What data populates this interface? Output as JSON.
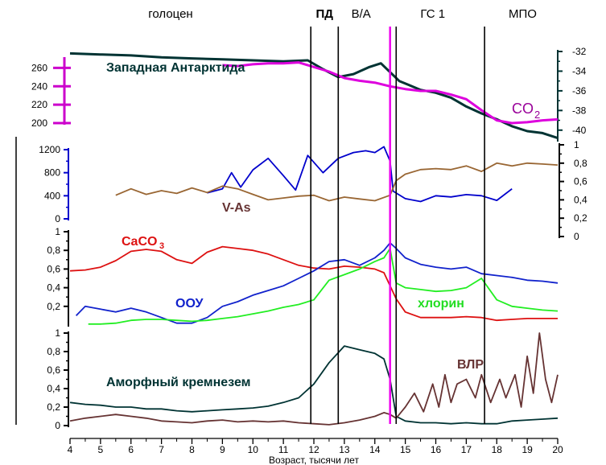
{
  "chart_data": {
    "type": "line",
    "xlabel": "Возраст, тысячи лет",
    "xlim": [
      4,
      20
    ],
    "x_ticks": [
      "4",
      "5",
      "6",
      "7",
      "8",
      "9",
      "10",
      "11",
      "12",
      "13",
      "14",
      "15",
      "16",
      "17",
      "18",
      "19",
      "20"
    ],
    "periods": [
      {
        "label": "голоцен",
        "x": 7.3
      },
      {
        "label": "ПД",
        "x": 12.35
      },
      {
        "label": "B/A",
        "x": 13.55
      },
      {
        "label": "ГС 1",
        "x": 15.9
      },
      {
        "label": "МПО",
        "x": 18.85
      }
    ],
    "event_lines": {
      "black": [
        11.9,
        12.8,
        14.7,
        17.6
      ],
      "magenta": 14.5
    },
    "annotations": {
      "antarctica": "Западная Антарктида",
      "co2": "CO",
      "co2_sub": "2",
      "vas": "V-As",
      "caco3": "CaCO",
      "caco3_sub": "3",
      "oou": "ООУ",
      "chlorin": "хлорин",
      "amorph": "Аморфный кремнезем",
      "vlr": "ВЛР"
    },
    "axes": {
      "co2": {
        "ticks": [
          "260",
          "240",
          "220",
          "200"
        ],
        "ylim": [
          200,
          270
        ],
        "color": "#cc00cc"
      },
      "d18o": {
        "ticks": [
          "-32",
          "-34",
          "-36",
          "-38",
          "-40"
        ],
        "ylim": [
          -41,
          -32
        ],
        "color": "#003333"
      },
      "vas": {
        "ticks": [
          "1200",
          "800",
          "400",
          "0"
        ],
        "ylim": [
          0,
          1200
        ],
        "color": "#0000cc"
      },
      "right01": {
        "ticks": [
          "1",
          "0,8",
          "0,6",
          "0,4",
          "0,2",
          "0"
        ],
        "ylim": [
          0,
          1
        ]
      },
      "mid01": {
        "ticks": [
          "1",
          "0,8",
          "0,6",
          "0,4",
          "0,2"
        ],
        "ylim": [
          0,
          1
        ]
      },
      "low01": {
        "ticks": [
          "1",
          "0,8",
          "0,6",
          "0,4",
          "0,2",
          "0"
        ],
        "ylim": [
          0,
          1
        ]
      }
    },
    "series": [
      {
        "name": "Западная Антарктида",
        "color": "#003333",
        "axis": "d18o",
        "x": [
          4,
          5,
          6,
          7,
          8,
          9,
          10,
          11,
          11.8,
          12.3,
          12.8,
          13.3,
          13.8,
          14.2,
          14.5,
          14.8,
          15.5,
          16,
          16.5,
          17,
          17.5,
          18,
          18.5,
          19,
          19.5,
          20
        ],
        "y": [
          -32.2,
          -32.3,
          -32.4,
          -32.6,
          -32.7,
          -32.8,
          -32.9,
          -33.0,
          -32.9,
          -33.8,
          -34.6,
          -34.3,
          -33.6,
          -33.2,
          -34.1,
          -35.0,
          -35.9,
          -36.2,
          -36.7,
          -37.6,
          -38.3,
          -38.9,
          -39.6,
          -40.1,
          -40.3,
          -40.8
        ]
      },
      {
        "name": "CO2",
        "color": "#dd00dd",
        "axis": "co2",
        "x": [
          9,
          9.5,
          10,
          10.5,
          11,
          11.5,
          12,
          12.5,
          13,
          13.5,
          14,
          14.5,
          15,
          15.5,
          16,
          16.5,
          17,
          17.5,
          18,
          18.5,
          19,
          19.5,
          20
        ],
        "y": [
          263,
          262,
          264,
          265,
          265,
          266,
          261,
          256,
          249,
          246,
          244,
          240,
          237,
          235,
          235,
          231,
          226,
          214,
          203,
          200,
          201,
          203,
          204
        ]
      },
      {
        "name": "V-As",
        "color": "#0000cc",
        "axis": "vas",
        "x": [
          8.5,
          9,
          9.3,
          9.6,
          10,
          10.5,
          11,
          11.4,
          11.8,
          12.3,
          12.8,
          13.3,
          13.7,
          14,
          14.3,
          14.5,
          14.6,
          15,
          15.5,
          16,
          16.5,
          17,
          17.5,
          18,
          18.5
        ],
        "y": [
          450,
          520,
          800,
          550,
          850,
          1050,
          750,
          500,
          1100,
          800,
          1050,
          1150,
          1180,
          1150,
          1250,
          1000,
          480,
          350,
          300,
          400,
          380,
          420,
          400,
          320,
          520
        ]
      },
      {
        "name": "V-As 0-1",
        "color": "#996633",
        "axis": "right01",
        "x": [
          5.5,
          6,
          6.5,
          7,
          7.5,
          8,
          8.5,
          9,
          9.5,
          10,
          10.5,
          11,
          11.5,
          12,
          12.5,
          13,
          13.5,
          14,
          14.5,
          14.7,
          15,
          15.5,
          16,
          16.5,
          17,
          17.5,
          18,
          18.5,
          19,
          19.5,
          20
        ],
        "y": [
          0.45,
          0.52,
          0.46,
          0.5,
          0.47,
          0.53,
          0.48,
          0.55,
          0.52,
          0.46,
          0.4,
          0.42,
          0.44,
          0.45,
          0.39,
          0.43,
          0.41,
          0.39,
          0.45,
          0.61,
          0.68,
          0.73,
          0.74,
          0.73,
          0.77,
          0.71,
          0.8,
          0.77,
          0.8,
          0.79,
          0.78
        ]
      },
      {
        "name": "CaCO3",
        "color": "#dd1111",
        "axis": "mid01",
        "x": [
          4,
          4.5,
          5,
          5.5,
          6,
          6.5,
          7,
          7.5,
          8,
          8.5,
          9,
          9.5,
          10,
          10.5,
          11,
          11.5,
          12,
          12.5,
          13,
          13.5,
          14,
          14.3,
          14.7,
          15,
          15.5,
          16,
          16.5,
          17,
          17.5,
          18,
          18.5,
          19,
          19.5,
          20
        ],
        "y": [
          0.58,
          0.59,
          0.62,
          0.69,
          0.79,
          0.81,
          0.79,
          0.7,
          0.66,
          0.78,
          0.84,
          0.82,
          0.8,
          0.76,
          0.7,
          0.64,
          0.61,
          0.6,
          0.63,
          0.62,
          0.6,
          0.56,
          0.28,
          0.14,
          0.08,
          0.08,
          0.08,
          0.09,
          0.08,
          0.05,
          0.06,
          0.07,
          0.07,
          0.07
        ]
      },
      {
        "name": "ООУ",
        "color": "#1122cc",
        "axis": "mid01",
        "x": [
          4.2,
          4.5,
          5,
          5.5,
          6,
          6.5,
          7,
          7.5,
          8,
          8.5,
          9,
          9.5,
          10,
          10.5,
          11,
          11.5,
          12,
          12.5,
          13,
          13.5,
          14,
          14.3,
          14.5,
          14.7,
          15,
          15.5,
          16,
          16.5,
          17,
          17.5,
          18,
          18.5,
          19,
          19.5,
          20
        ],
        "y": [
          0.1,
          0.2,
          0.17,
          0.14,
          0.18,
          0.14,
          0.08,
          0.02,
          0.02,
          0.08,
          0.2,
          0.25,
          0.32,
          0.37,
          0.42,
          0.5,
          0.58,
          0.68,
          0.7,
          0.64,
          0.72,
          0.8,
          0.88,
          0.82,
          0.72,
          0.65,
          0.62,
          0.6,
          0.62,
          0.55,
          0.53,
          0.51,
          0.48,
          0.47,
          0.45
        ]
      },
      {
        "name": "хлорин",
        "color": "#22ee22",
        "axis": "mid01",
        "x": [
          4.6,
          5,
          5.5,
          6,
          6.5,
          7,
          7.5,
          8,
          8.5,
          9,
          9.5,
          10,
          10.5,
          11,
          11.5,
          12,
          12.5,
          13,
          13.5,
          14,
          14.3,
          14.5,
          14.7,
          15,
          15.5,
          16,
          16.5,
          17,
          17.5,
          18,
          18.5,
          19,
          19.5,
          20
        ],
        "y": [
          0.01,
          0.01,
          0.02,
          0.05,
          0.06,
          0.06,
          0.05,
          0.04,
          0.05,
          0.07,
          0.09,
          0.12,
          0.15,
          0.19,
          0.22,
          0.27,
          0.48,
          0.54,
          0.6,
          0.68,
          0.72,
          0.82,
          0.45,
          0.4,
          0.38,
          0.36,
          0.37,
          0.4,
          0.5,
          0.27,
          0.2,
          0.18,
          0.16,
          0.15
        ]
      },
      {
        "name": "Аморфный кремнезем",
        "color": "#003333",
        "axis": "low01",
        "x": [
          4,
          4.5,
          5,
          5.5,
          6,
          6.5,
          7,
          7.5,
          8,
          8.5,
          9,
          9.5,
          10,
          10.5,
          11,
          11.5,
          12,
          12.5,
          13,
          13.5,
          14,
          14.3,
          14.5,
          14.7,
          15,
          15.5,
          16,
          16.5,
          17,
          17.5,
          18,
          18.5,
          19,
          19.5,
          20
        ],
        "y": [
          0.25,
          0.23,
          0.22,
          0.2,
          0.2,
          0.18,
          0.18,
          0.16,
          0.15,
          0.16,
          0.17,
          0.18,
          0.19,
          0.21,
          0.25,
          0.3,
          0.45,
          0.68,
          0.86,
          0.82,
          0.78,
          0.72,
          0.5,
          0.1,
          0.05,
          0.03,
          0.03,
          0.02,
          0.03,
          0.02,
          0.02,
          0.05,
          0.06,
          0.07,
          0.08
        ]
      },
      {
        "name": "ВЛР",
        "color": "#663333",
        "axis": "low01",
        "x": [
          4,
          4.5,
          5,
          5.5,
          6,
          6.5,
          7,
          7.5,
          8,
          8.5,
          9,
          9.5,
          10,
          10.5,
          11,
          11.5,
          12,
          12.5,
          13,
          13.5,
          14,
          14.3,
          14.5,
          14.7,
          15,
          15.3,
          15.6,
          15.9,
          16.1,
          16.3,
          16.5,
          16.7,
          17,
          17.3,
          17.5,
          17.8,
          18.1,
          18.3,
          18.6,
          18.8,
          19,
          19.2,
          19.4,
          19.6,
          19.8,
          20
        ],
        "y": [
          0.05,
          0.08,
          0.1,
          0.12,
          0.1,
          0.08,
          0.05,
          0.04,
          0.03,
          0.05,
          0.06,
          0.04,
          0.05,
          0.04,
          0.05,
          0.03,
          0.02,
          0.01,
          0.03,
          0.06,
          0.1,
          0.14,
          0.12,
          0.08,
          0.2,
          0.35,
          0.15,
          0.45,
          0.2,
          0.55,
          0.25,
          0.45,
          0.5,
          0.3,
          0.55,
          0.25,
          0.5,
          0.3,
          0.55,
          0.2,
          0.75,
          0.35,
          1.0,
          0.5,
          0.25,
          0.55
        ]
      }
    ]
  }
}
